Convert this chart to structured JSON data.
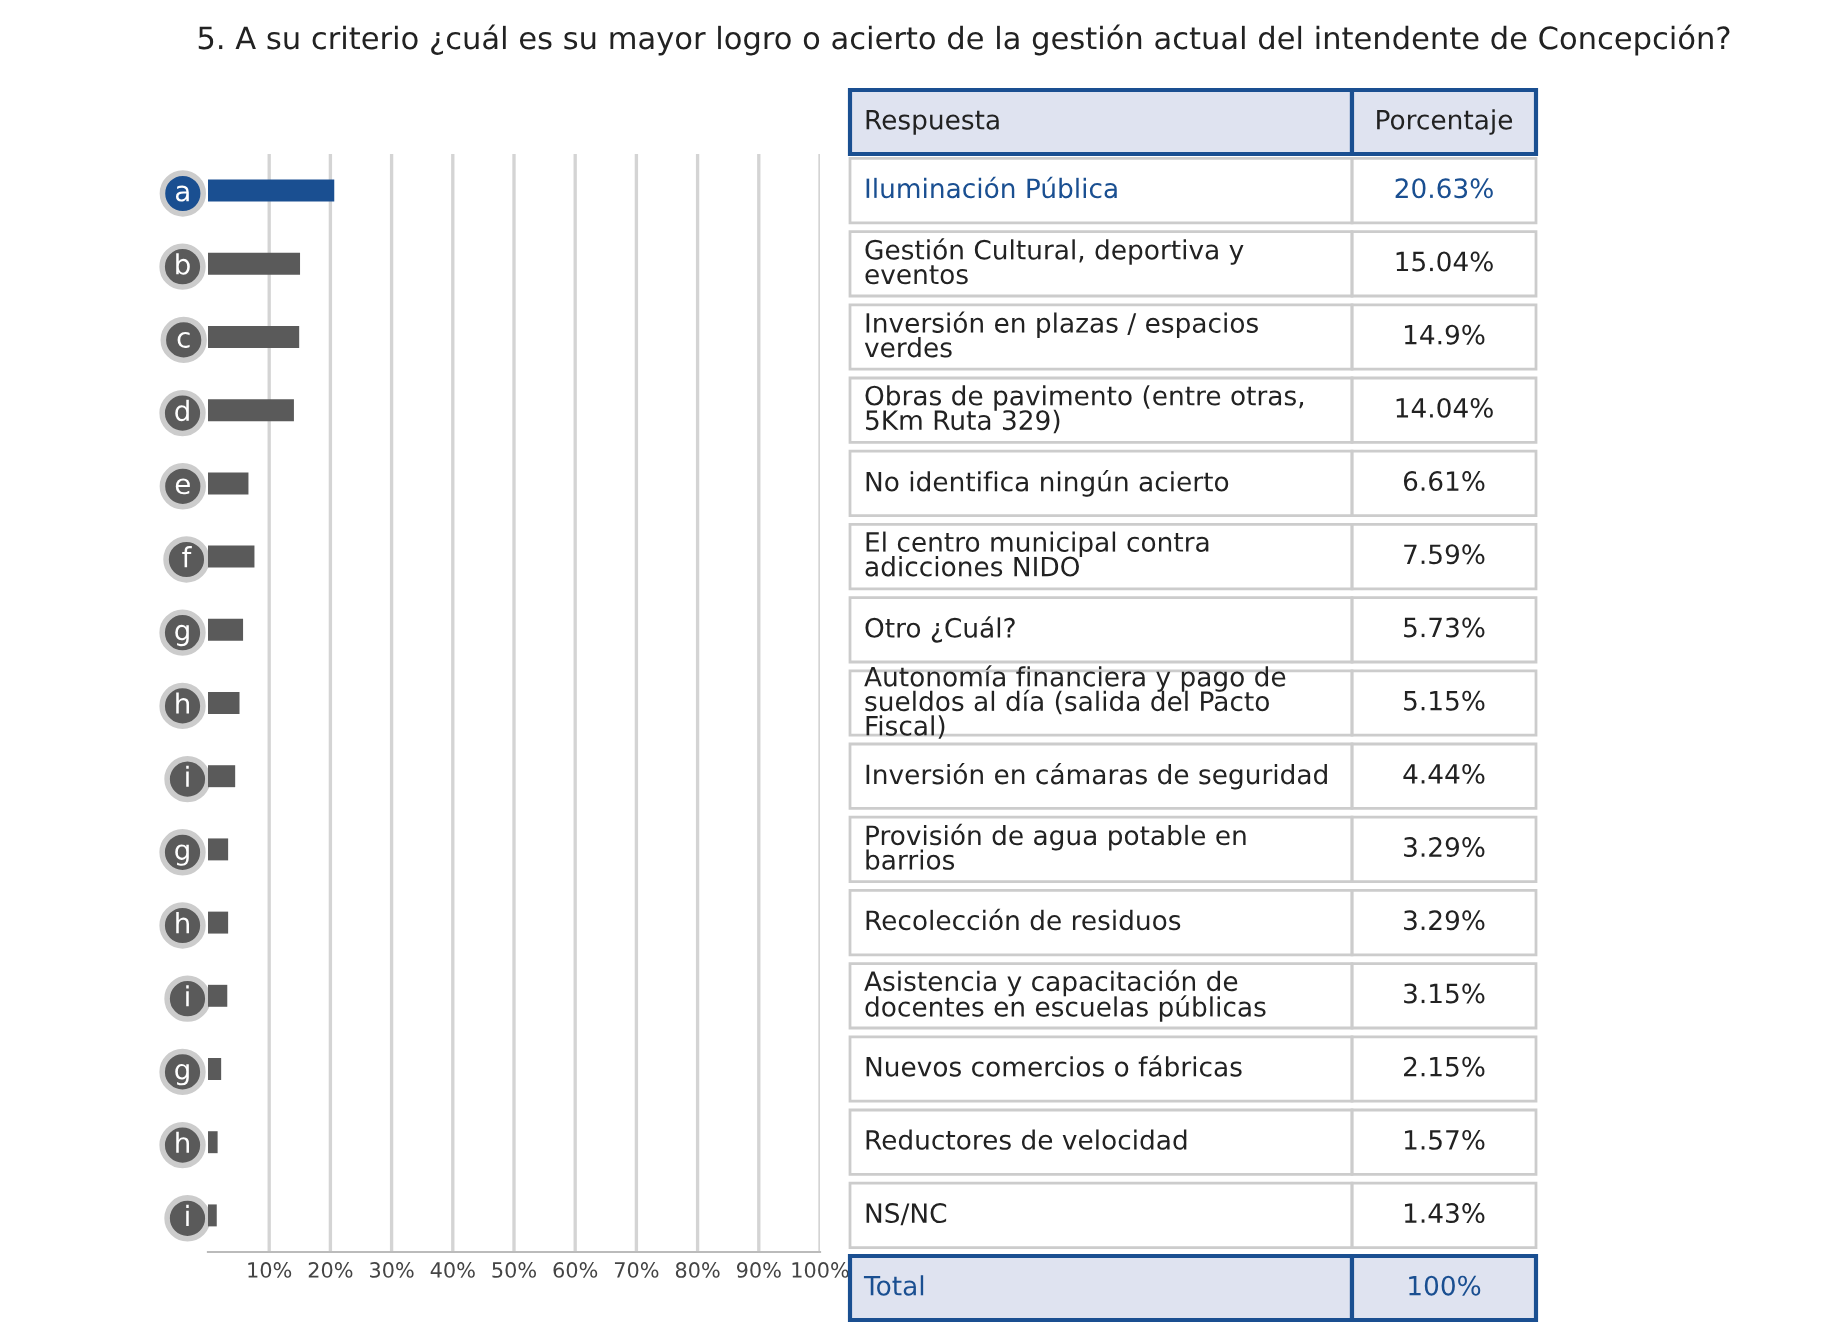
{
  "chart_data": {
    "type": "bar",
    "orientation": "horizontal",
    "title": "5. A su criterio ¿cuál es su mayor logro o acierto de la gestión actual del intendente de Concepción?",
    "categories": [
      "a",
      "b",
      "c",
      "d",
      "e",
      "f",
      "g",
      "h",
      "i",
      "g",
      "h",
      "i",
      "g",
      "h",
      "i"
    ],
    "y2_categories": [
      "Iluminación Pública",
      "Gestión Cultural, deportiva y eventos",
      "Inversión en plazas / espacios verdes",
      "Obras de pavimento (entre otras, 5Km Ruta 329)",
      "No identifica ningún acierto",
      "El centro municipal contra adicciones NIDO",
      "Otro ¿Cuál?",
      "Autonomía financiera y pago de sueldos al día (salida del Pacto Fiscal)",
      "Inversión en cámaras de seguridad",
      "Provisión de agua potable en barrios",
      "Recolección de residuos",
      "Asistencia y capacitación de docentes en escuelas públicas",
      "Nuevos comercios o fábricas",
      "Reductores de velocidad",
      "NS/NC"
    ],
    "values": [
      20.63,
      15.04,
      14.9,
      14.04,
      6.61,
      7.59,
      5.73,
      5.15,
      4.44,
      3.29,
      3.29,
      3.15,
      2.15,
      1.57,
      1.43
    ],
    "value_labels": [
      "20.63%",
      "15.04%",
      "14.9%",
      "14.04%",
      "6.61%",
      "7.59%",
      "5.73%",
      "5.15%",
      "4.44%",
      "3.29%",
      "3.29%",
      "3.15%",
      "2.15%",
      "1.57%",
      "1.43%"
    ],
    "colors": [
      "#1a4f91",
      "#5a5a5a",
      "#5a5a5a",
      "#5a5a5a",
      "#5a5a5a",
      "#5a5a5a",
      "#5a5a5a",
      "#5a5a5a",
      "#5a5a5a",
      "#5a5a5a",
      "#5a5a5a",
      "#5a5a5a",
      "#5a5a5a",
      "#5a5a5a",
      "#5a5a5a"
    ],
    "xlim": [
      0,
      100
    ],
    "xticks": [
      {
        "value": 10,
        "label": "10%"
      },
      {
        "value": 20,
        "label": "20%"
      },
      {
        "value": 30,
        "label": "30%"
      },
      {
        "value": 40,
        "label": "40%"
      },
      {
        "value": 50,
        "label": "50%"
      },
      {
        "value": 60,
        "label": "60%"
      },
      {
        "value": 70,
        "label": "70%"
      },
      {
        "value": 80,
        "label": "80%"
      },
      {
        "value": 90,
        "label": "90%"
      },
      {
        "value": 100,
        "label": "100%"
      }
    ],
    "grid": "x",
    "annotations": [
      "Respuesta",
      "Porcentaje",
      "Total",
      "100%"
    ]
  }
}
